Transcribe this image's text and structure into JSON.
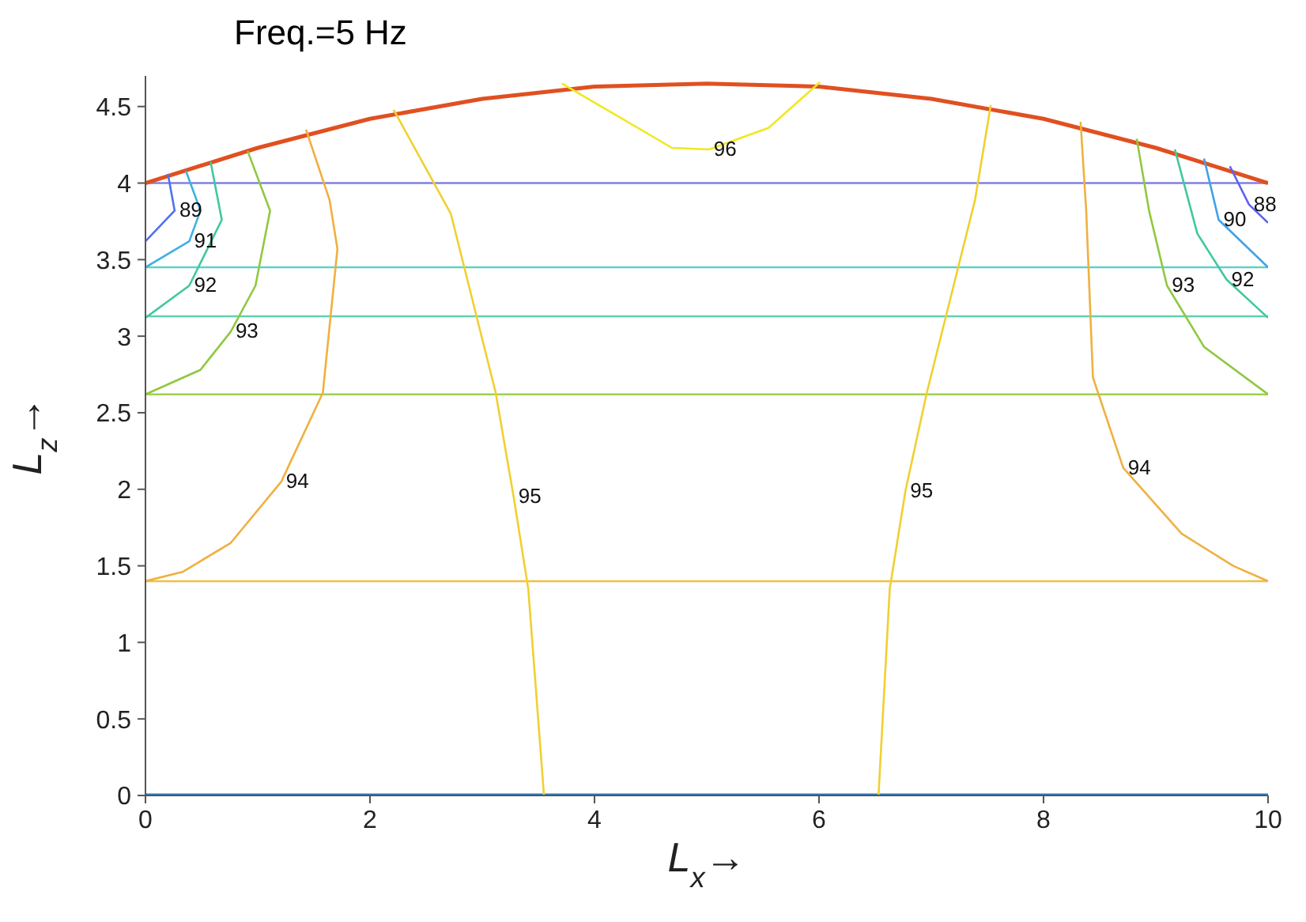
{
  "chart_data": {
    "type": "line",
    "title": "Freq.=5 Hz",
    "xlabel": "L$_{x}$→",
    "ylabel": "L$_{z}$→",
    "xlim": [
      0,
      10
    ],
    "ylim": [
      0,
      4.7
    ],
    "xticks": [
      0,
      2,
      4,
      6,
      8,
      10
    ],
    "yticks": [
      0,
      0.5,
      1,
      1.5,
      2,
      2.5,
      3,
      3.5,
      4,
      4.5
    ],
    "grid": false,
    "legend": false,
    "marker": "none",
    "line_style": "solid",
    "series": [
      {
        "color": "#e05020",
        "x": [
          0,
          1,
          2,
          3,
          4,
          5,
          6,
          7,
          8,
          9,
          10
        ],
        "values": [
          4,
          4.23,
          4.42,
          4.55,
          4.63,
          4.65,
          4.63,
          4.55,
          4.42,
          4.23,
          4
        ]
      },
      {
        "color": "#2080d0",
        "x": [
          0,
          10
        ],
        "values": [
          0,
          0
        ]
      },
      {
        "name": "96",
        "color": "#f0e820",
        "x": [
          3.71,
          4.69,
          5.02,
          5.55,
          6.01
        ],
        "values": [
          4.65,
          4.23,
          4.22,
          4.36,
          4.66
        ]
      },
      {
        "name": "95",
        "color": "#f0d030",
        "x": [
          2.21,
          2.72,
          3.12,
          3.28,
          3.41,
          3.55
        ],
        "values": [
          4.48,
          3.8,
          2.63,
          1.95,
          1.35,
          0
        ]
      },
      {
        "name": "95",
        "color": "#f0d030",
        "x": [
          7.53,
          7.39,
          6.96,
          6.77,
          6.63,
          6.53
        ],
        "values": [
          4.51,
          3.89,
          2.63,
          1.99,
          1.35,
          0
        ]
      },
      {
        "name": "94",
        "color": "#f0b040",
        "x": [
          1.43,
          1.64,
          1.71,
          1.58,
          1.21,
          0.76,
          0.33,
          0
        ],
        "values": [
          4.35,
          3.89,
          3.57,
          2.63,
          2.05,
          1.65,
          1.46,
          1.4
        ]
      },
      {
        "name": "94",
        "color": "#f0b040",
        "x": [
          8.33,
          8.38,
          8.44,
          8.71,
          9.23,
          9.69,
          10
        ],
        "values": [
          4.4,
          3.82,
          2.73,
          2.14,
          1.71,
          1.5,
          1.4
        ]
      },
      {
        "name": "93",
        "color": "#90c840",
        "x": [
          0.91,
          1.11,
          0.98,
          0.76,
          0.49,
          0
        ],
        "values": [
          4.21,
          3.82,
          3.33,
          3.03,
          2.78,
          2.62
        ]
      },
      {
        "name": "93",
        "color": "#90c840",
        "x": [
          8.83,
          8.94,
          9.1,
          9.43,
          10
        ],
        "values": [
          4.29,
          3.82,
          3.33,
          2.93,
          2.62
        ]
      },
      {
        "name": "92",
        "color": "#40c8a0",
        "x": [
          0.58,
          0.68,
          0.39,
          0
        ],
        "values": [
          4.14,
          3.76,
          3.33,
          3.12
        ]
      },
      {
        "name": "92",
        "color": "#40c8a0",
        "x": [
          9.17,
          9.37,
          9.63,
          10
        ],
        "values": [
          4.22,
          3.67,
          3.37,
          3.12
        ]
      },
      {
        "name": "91",
        "color": "#40b0e0",
        "x": [
          0.36,
          0.49,
          0.39,
          0
        ],
        "values": [
          4.08,
          3.82,
          3.62,
          3.45
        ]
      },
      {
        "name": "90",
        "color": "#40a0e8",
        "x": [
          9.43,
          9.56,
          10
        ],
        "values": [
          4.16,
          3.76,
          3.45
        ]
      },
      {
        "name": "89",
        "color": "#5070f0",
        "x": [
          0.2,
          0.26,
          0
        ],
        "values": [
          4.06,
          3.82,
          3.62
        ]
      },
      {
        "name": "88",
        "color": "#6060f0",
        "x": [
          9.66,
          9.83,
          10
        ],
        "values": [
          4.11,
          3.86,
          3.74
        ]
      }
    ],
    "ref_lines": [
      {
        "axis": "y",
        "value": 4,
        "color": "#8080e0"
      },
      {
        "axis": "y",
        "value": 3.45,
        "color": "#60d0c8"
      },
      {
        "axis": "y",
        "value": 3.13,
        "color": "#60d0b0"
      },
      {
        "axis": "y",
        "value": 2.62,
        "color": "#a0d050"
      },
      {
        "axis": "y",
        "value": 1.4,
        "color": "#f0c040"
      }
    ]
  }
}
